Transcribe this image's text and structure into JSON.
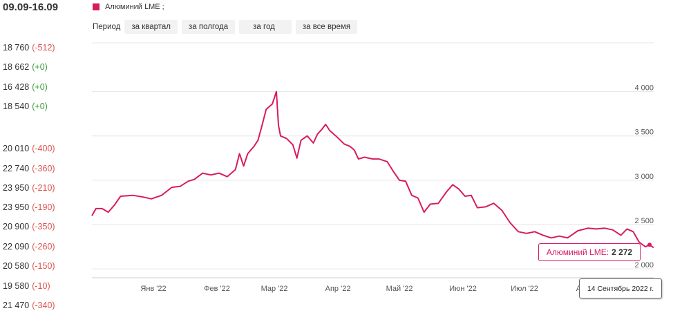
{
  "header": {
    "date_range": "09.09-16.09"
  },
  "prices": [
    {
      "value": "18 760",
      "change": "(-512)",
      "dir": "neg"
    },
    {
      "value": "18 662",
      "change": "(+0)",
      "dir": "pos"
    },
    {
      "value": "16 428",
      "change": "(+0)",
      "dir": "pos"
    },
    {
      "value": "18 540",
      "change": "(+0)",
      "dir": "pos"
    },
    {
      "value": "20 010",
      "change": "(-400)",
      "dir": "neg"
    },
    {
      "value": "22 740",
      "change": "(-360)",
      "dir": "neg"
    },
    {
      "value": "23 950",
      "change": "(-210)",
      "dir": "neg"
    },
    {
      "value": "23 950",
      "change": "(-190)",
      "dir": "neg"
    },
    {
      "value": "20 900",
      "change": "(-350)",
      "dir": "neg"
    },
    {
      "value": "22 090",
      "change": "(-260)",
      "dir": "neg"
    },
    {
      "value": "20 580",
      "change": "(-150)",
      "dir": "neg"
    },
    {
      "value": "19 580",
      "change": "(-10)",
      "dir": "neg"
    },
    {
      "value": "21 470",
      "change": "(-340)",
      "dir": "neg"
    }
  ],
  "legend": {
    "label": "Алюминий LME ;",
    "color": "#d81b60"
  },
  "period": {
    "label": "Период",
    "buttons": [
      "за квартал",
      "за полгода",
      "за год",
      "за все время"
    ]
  },
  "tooltip": {
    "series_label": "Алюминий LME:",
    "value": "2 272",
    "date": "14 Сентябрь 2022 г."
  },
  "chart_data": {
    "type": "line",
    "series": [
      {
        "name": "Алюминий LME",
        "color": "#d81b60"
      }
    ],
    "y_ticks": [
      {
        "value": 2000,
        "label": "2 000"
      },
      {
        "value": 2500,
        "label": "2 500"
      },
      {
        "value": 3000,
        "label": "3 000"
      },
      {
        "value": 3500,
        "label": "3 500"
      },
      {
        "value": 4000,
        "label": "4 000"
      }
    ],
    "x_ticks": [
      {
        "date": "2022-01-15",
        "label": "Янв '22"
      },
      {
        "date": "2022-02-15",
        "label": "Фев '22"
      },
      {
        "date": "2022-03-15",
        "label": "Мар '22"
      },
      {
        "date": "2022-04-15",
        "label": "Апр '22"
      },
      {
        "date": "2022-05-15",
        "label": "Май '22"
      },
      {
        "date": "2022-06-15",
        "label": "Июн '22"
      },
      {
        "date": "2022-07-15",
        "label": "Июл '22"
      },
      {
        "date": "2022-08-15",
        "label": "Авг '22"
      }
    ],
    "x_range": [
      "2021-12-16",
      "2022-09-16"
    ],
    "ylim": [
      1900,
      4550
    ],
    "points": [
      [
        "2021-12-16",
        2600
      ],
      [
        "2021-12-18",
        2680
      ],
      [
        "2021-12-21",
        2680
      ],
      [
        "2021-12-24",
        2640
      ],
      [
        "2021-12-27",
        2720
      ],
      [
        "2021-12-30",
        2820
      ],
      [
        "2022-01-05",
        2830
      ],
      [
        "2022-01-10",
        2810
      ],
      [
        "2022-01-14",
        2790
      ],
      [
        "2022-01-19",
        2830
      ],
      [
        "2022-01-24",
        2920
      ],
      [
        "2022-01-28",
        2930
      ],
      [
        "2022-02-01",
        2990
      ],
      [
        "2022-02-04",
        3010
      ],
      [
        "2022-02-08",
        3080
      ],
      [
        "2022-02-12",
        3060
      ],
      [
        "2022-02-16",
        3080
      ],
      [
        "2022-02-20",
        3040
      ],
      [
        "2022-02-24",
        3120
      ],
      [
        "2022-02-26",
        3300
      ],
      [
        "2022-02-28",
        3160
      ],
      [
        "2022-03-02",
        3300
      ],
      [
        "2022-03-05",
        3380
      ],
      [
        "2022-03-07",
        3450
      ],
      [
        "2022-03-09",
        3620
      ],
      [
        "2022-03-11",
        3800
      ],
      [
        "2022-03-14",
        3860
      ],
      [
        "2022-03-16",
        4000
      ],
      [
        "2022-03-17",
        3620
      ],
      [
        "2022-03-18",
        3500
      ],
      [
        "2022-03-21",
        3470
      ],
      [
        "2022-03-24",
        3400
      ],
      [
        "2022-03-26",
        3250
      ],
      [
        "2022-03-28",
        3450
      ],
      [
        "2022-03-31",
        3500
      ],
      [
        "2022-04-03",
        3420
      ],
      [
        "2022-04-05",
        3520
      ],
      [
        "2022-04-07",
        3570
      ],
      [
        "2022-04-09",
        3630
      ],
      [
        "2022-04-11",
        3560
      ],
      [
        "2022-04-14",
        3500
      ],
      [
        "2022-04-18",
        3410
      ],
      [
        "2022-04-21",
        3380
      ],
      [
        "2022-04-23",
        3340
      ],
      [
        "2022-04-25",
        3240
      ],
      [
        "2022-04-28",
        3260
      ],
      [
        "2022-05-02",
        3240
      ],
      [
        "2022-05-05",
        3240
      ],
      [
        "2022-05-09",
        3210
      ],
      [
        "2022-05-12",
        3100
      ],
      [
        "2022-05-15",
        3000
      ],
      [
        "2022-05-18",
        2990
      ],
      [
        "2022-05-21",
        2830
      ],
      [
        "2022-05-24",
        2800
      ],
      [
        "2022-05-27",
        2640
      ],
      [
        "2022-05-30",
        2730
      ],
      [
        "2022-06-03",
        2740
      ],
      [
        "2022-06-07",
        2870
      ],
      [
        "2022-06-10",
        2950
      ],
      [
        "2022-06-13",
        2900
      ],
      [
        "2022-06-16",
        2820
      ],
      [
        "2022-06-19",
        2830
      ],
      [
        "2022-06-22",
        2690
      ],
      [
        "2022-06-26",
        2700
      ],
      [
        "2022-06-30",
        2740
      ],
      [
        "2022-07-04",
        2660
      ],
      [
        "2022-07-08",
        2520
      ],
      [
        "2022-07-12",
        2420
      ],
      [
        "2022-07-16",
        2400
      ],
      [
        "2022-07-20",
        2420
      ],
      [
        "2022-07-24",
        2380
      ],
      [
        "2022-07-28",
        2350
      ],
      [
        "2022-08-01",
        2370
      ],
      [
        "2022-08-05",
        2350
      ],
      [
        "2022-08-10",
        2430
      ],
      [
        "2022-08-15",
        2460
      ],
      [
        "2022-08-19",
        2450
      ],
      [
        "2022-08-23",
        2460
      ],
      [
        "2022-08-27",
        2440
      ],
      [
        "2022-08-31",
        2380
      ],
      [
        "2022-09-03",
        2450
      ],
      [
        "2022-09-06",
        2420
      ],
      [
        "2022-09-09",
        2300
      ],
      [
        "2022-09-12",
        2250
      ],
      [
        "2022-09-14",
        2272
      ],
      [
        "2022-09-16",
        2240
      ]
    ]
  }
}
